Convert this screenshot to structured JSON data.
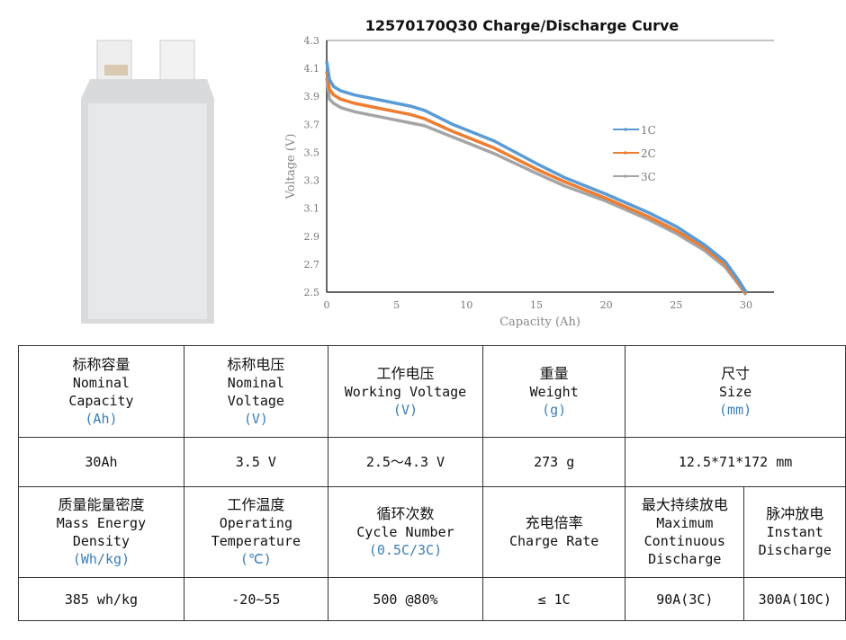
{
  "chart_data": {
    "type": "line",
    "title": "12570170Q30 Charge/Discharge Curve",
    "xlabel": "Capacity (Ah)",
    "ylabel": "Voltage (V)",
    "xlim": [
      0,
      30
    ],
    "ylim": [
      2.5,
      4.3
    ],
    "xticks": [
      0,
      5,
      10,
      15,
      20,
      25,
      30
    ],
    "yticks": [
      2.5,
      2.7,
      2.9,
      3.1,
      3.3,
      3.5,
      3.7,
      3.9,
      4.1,
      4.3
    ],
    "grid": false,
    "legend": "right",
    "series": [
      {
        "name": "1C",
        "color": "#5b9bd5",
        "x": [
          0,
          0.2,
          0.5,
          1,
          2,
          4,
          6,
          7,
          9,
          12,
          15,
          17,
          20,
          23,
          25,
          27,
          28.5,
          29.5,
          30
        ],
        "y": [
          4.15,
          4.02,
          3.97,
          3.94,
          3.91,
          3.87,
          3.83,
          3.8,
          3.7,
          3.58,
          3.42,
          3.32,
          3.2,
          3.07,
          2.97,
          2.84,
          2.72,
          2.58,
          2.5
        ]
      },
      {
        "name": "2C",
        "color": "#ed7d31",
        "x": [
          0,
          0.2,
          0.5,
          1,
          2,
          4,
          6,
          7,
          9,
          12,
          15,
          17,
          20,
          23,
          25,
          27,
          28.5,
          29.5,
          30
        ],
        "y": [
          4.08,
          3.95,
          3.91,
          3.88,
          3.85,
          3.81,
          3.77,
          3.74,
          3.65,
          3.53,
          3.38,
          3.29,
          3.17,
          3.04,
          2.94,
          2.82,
          2.7,
          2.56,
          2.49
        ]
      },
      {
        "name": "3C",
        "color": "#a5a5a5",
        "x": [
          0,
          0.2,
          0.5,
          1,
          2,
          4,
          6,
          7,
          9,
          12,
          15,
          17,
          20,
          23,
          25,
          27,
          28.5,
          29.5,
          30
        ],
        "y": [
          4.03,
          3.88,
          3.85,
          3.82,
          3.79,
          3.75,
          3.71,
          3.69,
          3.61,
          3.49,
          3.35,
          3.26,
          3.15,
          3.02,
          2.92,
          2.8,
          2.68,
          2.55,
          2.48
        ]
      }
    ]
  },
  "table": {
    "row1": [
      {
        "zh": "标称容量",
        "en": [
          "Nominal",
          "Capacity"
        ],
        "unit": "(Ah)"
      },
      {
        "zh": "标称电压",
        "en": [
          "Nominal",
          "Voltage"
        ],
        "unit": "(V)"
      },
      {
        "zh": "工作电压",
        "en": [
          "Working Voltage"
        ],
        "unit": "(V)"
      },
      {
        "zh": "重量",
        "en": [
          "Weight"
        ],
        "unit": "(g)"
      },
      {
        "zh": "尺寸",
        "en": [
          "Size"
        ],
        "unit": "(mm)"
      }
    ],
    "row2": [
      "30Ah",
      "3.5 V",
      "2.5～4.3 V",
      "273 g",
      "12.5*71*172 mm"
    ],
    "row3": [
      {
        "zh": "质量能量密度",
        "en": [
          "Mass Energy",
          "Density"
        ],
        "unit": "(Wh/kg)"
      },
      {
        "zh": "工作温度",
        "en": [
          "Operating",
          "Temperature"
        ],
        "unit": "(℃)"
      },
      {
        "zh": "循环次数",
        "en": [
          "Cycle Number"
        ],
        "unit": "(0.5C/3C)"
      },
      {
        "zh": "充电倍率",
        "en": [
          "Charge Rate"
        ],
        "unit": ""
      },
      {
        "zh": "最大持续放电",
        "en": [
          "Maximum",
          "Continuous",
          "Discharge"
        ],
        "unit": ""
      },
      {
        "zh": "脉冲放电",
        "en": [
          "Instant",
          "Discharge"
        ],
        "unit": ""
      }
    ],
    "row4": [
      "385 wh/kg",
      "-20~55",
      "500  @80%",
      "≤ 1C",
      "90A(3C)",
      "300A(10C)"
    ]
  }
}
